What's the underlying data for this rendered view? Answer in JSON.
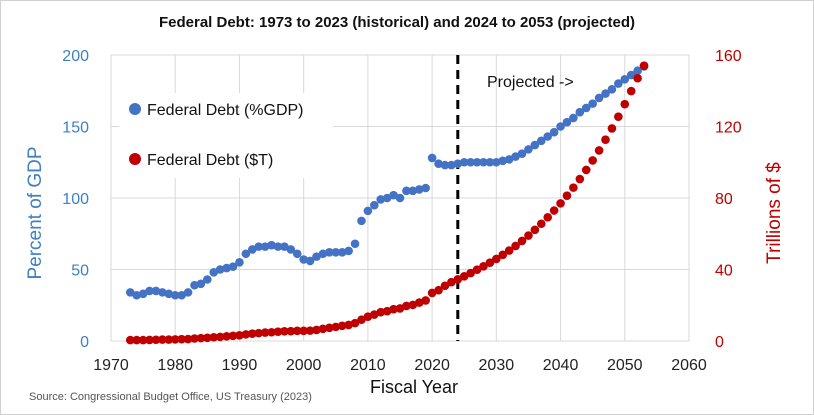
{
  "chart_data": {
    "type": "scatter",
    "title": "Federal Debt: 1973 to 2023 (historical) and 2024 to 2053 (projected)",
    "xlabel": "Fiscal Year",
    "ylabel_left": "Percent of GDP",
    "ylabel_right": "Trillions of $",
    "xlim": [
      1970,
      2060
    ],
    "ylim_left": [
      0,
      200
    ],
    "ylim_right": [
      0,
      160
    ],
    "x_ticks": [
      1970,
      1980,
      1990,
      2000,
      2010,
      2020,
      2030,
      2040,
      2050,
      2060
    ],
    "y_left_ticks": [
      0,
      50,
      100,
      150,
      200
    ],
    "y_right_ticks": [
      0,
      40,
      80,
      120,
      160
    ],
    "divider_year": 2024,
    "annotation": "Projected ->",
    "source": "Source: Congressional Budget Office, US Treasury (2023)",
    "x": [
      1973,
      1974,
      1975,
      1976,
      1977,
      1978,
      1979,
      1980,
      1981,
      1982,
      1983,
      1984,
      1985,
      1986,
      1987,
      1988,
      1989,
      1990,
      1991,
      1992,
      1993,
      1994,
      1995,
      1996,
      1997,
      1998,
      1999,
      2000,
      2001,
      2002,
      2003,
      2004,
      2005,
      2006,
      2007,
      2008,
      2009,
      2010,
      2011,
      2012,
      2013,
      2014,
      2015,
      2016,
      2017,
      2018,
      2019,
      2020,
      2021,
      2022,
      2023,
      2024,
      2025,
      2026,
      2027,
      2028,
      2029,
      2030,
      2031,
      2032,
      2033,
      2034,
      2035,
      2036,
      2037,
      2038,
      2039,
      2040,
      2041,
      2042,
      2043,
      2044,
      2045,
      2046,
      2047,
      2048,
      2049,
      2050,
      2051,
      2052,
      2053
    ],
    "series": [
      {
        "name": "Federal Debt (%GDP)",
        "color": "#4472c4",
        "axis": "left",
        "values": [
          34,
          32,
          33,
          35,
          35,
          34,
          33,
          32,
          32,
          34,
          39,
          40,
          43,
          48,
          50,
          51,
          52,
          55,
          61,
          64,
          66,
          66,
          67,
          66,
          66,
          64,
          61,
          57,
          56,
          59,
          61,
          62,
          62,
          62,
          63,
          68,
          84,
          91,
          95,
          99,
          100,
          102,
          100,
          105,
          105,
          106,
          107,
          128,
          124,
          123,
          123,
          124,
          125,
          125,
          125,
          125,
          125,
          125,
          126,
          127,
          129,
          131,
          134,
          137,
          140,
          143,
          146,
          150,
          153,
          156,
          160,
          163,
          166,
          170,
          173,
          176,
          180,
          183,
          186,
          189,
          192
        ]
      },
      {
        "name": "Federal Debt ($T)",
        "color": "#c00000",
        "axis": "right",
        "values": [
          0.5,
          0.5,
          0.5,
          0.6,
          0.7,
          0.8,
          0.8,
          0.9,
          1.0,
          1.1,
          1.4,
          1.6,
          1.8,
          2.1,
          2.3,
          2.6,
          2.9,
          3.2,
          3.7,
          4.1,
          4.4,
          4.7,
          4.9,
          5.2,
          5.4,
          5.5,
          5.7,
          5.7,
          5.8,
          6.2,
          6.8,
          7.4,
          7.9,
          8.5,
          9.0,
          10.0,
          11.9,
          13.6,
          14.8,
          16.1,
          16.7,
          17.8,
          18.2,
          19.6,
          20.2,
          21.5,
          22.7,
          26.9,
          28.4,
          30.9,
          32.9,
          34.5,
          36.2,
          38.0,
          39.9,
          41.8,
          43.8,
          45.9,
          48.2,
          50.6,
          53.2,
          56.0,
          59.0,
          62.2,
          65.6,
          69.2,
          73.0,
          77.0,
          81.3,
          85.8,
          90.6,
          95.7,
          101.0,
          106.6,
          112.6,
          118.9,
          125.5,
          132.5,
          139.8,
          147.0,
          154.0
        ]
      }
    ],
    "legend": [
      "Federal Debt (%GDP)",
      "Federal Debt ($T)"
    ]
  },
  "colors": {
    "left_axis": "#3d80c3",
    "right_axis": "#c00000",
    "series_gdp": "#4472c4",
    "series_trillions": "#c00000"
  }
}
